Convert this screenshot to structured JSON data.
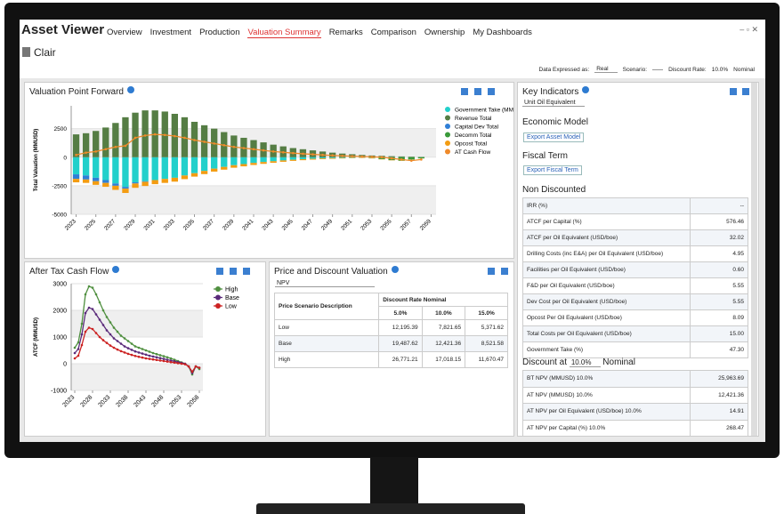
{
  "header": {
    "title": "Asset Viewer",
    "tabs": [
      "Overview",
      "Investment",
      "Production",
      "Valuation Summary",
      "Remarks",
      "Comparison",
      "Ownership",
      "My Dashboards"
    ]
  },
  "asset": "Clair",
  "controls": {
    "data_expressed_label": "Data Expressed as:",
    "data_expressed_value": "Real",
    "scenario_label": "Scenario:",
    "discount_rate_label": "Discount Rate:",
    "discount_rate_value": "10.0%",
    "discount_basis": "Nominal"
  },
  "chart_data": [
    {
      "type": "bar",
      "title": "Valuation Point Forward",
      "y_label": "Total Valuation (MMUSD)",
      "x": [
        2023,
        2024,
        2025,
        2026,
        2027,
        2028,
        2029,
        2030,
        2031,
        2032,
        2033,
        2034,
        2035,
        2036,
        2037,
        2038,
        2039,
        2040,
        2041,
        2042,
        2043,
        2044,
        2045,
        2046,
        2047,
        2048,
        2049,
        2050,
        2051,
        2052,
        2053,
        2054,
        2055,
        2056,
        2057,
        2058
      ],
      "xlim": [
        2022.5,
        2059.5
      ],
      "xticks": [
        2023,
        2025,
        2027,
        2029,
        2031,
        2033,
        2035,
        2037,
        2039,
        2041,
        2043,
        2045,
        2047,
        2049,
        2051,
        2053,
        2055,
        2057,
        2059
      ],
      "ylim": [
        -5000,
        4500
      ],
      "yticks": [
        -5000,
        -2500,
        0,
        2500
      ],
      "series": [
        {
          "name": "Government Take (MMUSD)",
          "type": "bar",
          "color": "#22d0cb",
          "values": [
            -1500,
            -1600,
            -1800,
            -2000,
            -2300,
            -2600,
            -2200,
            -2100,
            -2000,
            -1900,
            -1800,
            -1600,
            -1400,
            -1200,
            -1000,
            -850,
            -700,
            -600,
            -500,
            -420,
            -350,
            -280,
            -220,
            -170,
            -130,
            -100,
            -80,
            -60,
            -45,
            -35,
            -25,
            -18,
            -12,
            -8,
            -5,
            -3
          ]
        },
        {
          "name": "Revenue Total",
          "type": "bar",
          "color": "#557d44",
          "values": [
            2000,
            2100,
            2300,
            2600,
            3000,
            3500,
            3900,
            4100,
            4100,
            4000,
            3800,
            3500,
            3100,
            2800,
            2500,
            2200,
            1900,
            1700,
            1500,
            1300,
            1100,
            950,
            800,
            700,
            600,
            500,
            400,
            320,
            260,
            200,
            150,
            120,
            90,
            70,
            50,
            30
          ]
        },
        {
          "name": "Capital Dev Total",
          "type": "bar",
          "color": "#2f7fd6",
          "values": [
            -400,
            -350,
            -300,
            -250,
            -200,
            -150,
            -100,
            -50,
            0,
            0,
            0,
            0,
            0,
            0,
            0,
            0,
            0,
            0,
            0,
            0,
            0,
            0,
            0,
            0,
            0,
            0,
            0,
            0,
            0,
            0,
            0,
            0,
            0,
            0,
            0,
            0
          ]
        },
        {
          "name": "Decomm Total",
          "type": "bar",
          "color": "#3a9a3a",
          "values": [
            0,
            0,
            0,
            0,
            0,
            0,
            0,
            0,
            0,
            0,
            0,
            0,
            0,
            0,
            0,
            0,
            0,
            0,
            0,
            0,
            0,
            0,
            0,
            0,
            0,
            0,
            0,
            0,
            0,
            0,
            -50,
            -150,
            -250,
            -300,
            -200,
            -100
          ]
        },
        {
          "name": "Opcost Total",
          "type": "bar",
          "color": "#f39c12",
          "values": [
            -300,
            -300,
            -320,
            -340,
            -360,
            -380,
            -380,
            -370,
            -360,
            -350,
            -340,
            -320,
            -300,
            -280,
            -260,
            -240,
            -220,
            -200,
            -180,
            -160,
            -140,
            -120,
            -100,
            -90,
            -80,
            -70,
            -60,
            -50,
            -40,
            -35,
            -30,
            -25,
            -20,
            -15,
            -10,
            -5
          ]
        },
        {
          "name": "AT Cash Flow",
          "type": "line",
          "color": "#ef8a2a",
          "values": [
            200,
            400,
            500,
            700,
            900,
            1000,
            1700,
            1900,
            2000,
            1950,
            1850,
            1700,
            1500,
            1350,
            1200,
            1050,
            900,
            800,
            700,
            600,
            500,
            430,
            360,
            300,
            250,
            200,
            160,
            120,
            90,
            60,
            30,
            0,
            -100,
            -200,
            -300,
            -200
          ]
        }
      ]
    },
    {
      "type": "line",
      "title": "After Tax Cash Flow",
      "y_label": "ATCF (MMUSD)",
      "x": [
        2023,
        2024,
        2025,
        2026,
        2027,
        2028,
        2029,
        2030,
        2031,
        2032,
        2033,
        2034,
        2035,
        2036,
        2037,
        2038,
        2039,
        2040,
        2041,
        2042,
        2043,
        2044,
        2045,
        2046,
        2047,
        2048,
        2049,
        2050,
        2051,
        2052,
        2053,
        2054,
        2055,
        2056,
        2057,
        2058
      ],
      "xlim": [
        2022,
        2059
      ],
      "xticks": [
        2023,
        2028,
        2033,
        2038,
        2043,
        2048,
        2053,
        2058
      ],
      "ylim": [
        -1000,
        3000
      ],
      "yticks": [
        -1000,
        0,
        1000,
        2000,
        3000
      ],
      "series": [
        {
          "name": "High",
          "type": "line",
          "color": "#4f8f3f",
          "values": [
            600,
            800,
            1500,
            2600,
            2900,
            2850,
            2600,
            2300,
            2000,
            1750,
            1550,
            1350,
            1200,
            1050,
            950,
            850,
            750,
            650,
            600,
            550,
            500,
            450,
            400,
            360,
            320,
            280,
            240,
            200,
            150,
            100,
            50,
            0,
            -100,
            -400,
            -100,
            -200
          ]
        },
        {
          "name": "Base",
          "type": "line",
          "color": "#5a2a7a",
          "values": [
            400,
            550,
            1100,
            1900,
            2100,
            2050,
            1850,
            1650,
            1450,
            1250,
            1100,
            950,
            850,
            750,
            650,
            580,
            520,
            460,
            420,
            380,
            340,
            300,
            270,
            240,
            210,
            180,
            150,
            120,
            90,
            60,
            30,
            0,
            -100,
            -350,
            -100,
            -150
          ]
        },
        {
          "name": "Low",
          "type": "line",
          "color": "#cc2222",
          "values": [
            200,
            300,
            700,
            1200,
            1350,
            1300,
            1150,
            1000,
            880,
            780,
            680,
            600,
            530,
            470,
            420,
            370,
            330,
            290,
            260,
            230,
            200,
            180,
            160,
            140,
            120,
            100,
            80,
            60,
            40,
            20,
            0,
            -20,
            -100,
            -300,
            -100,
            -150
          ]
        }
      ]
    }
  ],
  "price_table": {
    "title": "Price and Discount Valuation",
    "measure": "NPV",
    "columns": [
      "Price Scenario Description",
      "Discount Rate Nominal"
    ],
    "rates": [
      "5.0%",
      "10.0%",
      "15.0%"
    ],
    "rows": [
      [
        "Low",
        "12,195.39",
        "7,821.65",
        "5,371.62"
      ],
      [
        "Base",
        "19,487.62",
        "12,421.36",
        "8,521.58"
      ],
      [
        "High",
        "26,771.21",
        "17,018.15",
        "11,670.47"
      ]
    ]
  },
  "key_indicators": {
    "title": "Key Indicators",
    "unit": "Unit Oil Equivalent",
    "economic_model": "Economic Model",
    "export_asset": "Export Asset Model",
    "fiscal_term": "Fiscal Term",
    "export_fiscal": "Export Fiscal Term",
    "non_discounted": "Non Discounted",
    "rows": [
      [
        "IRR (%)",
        "--"
      ],
      [
        "ATCF per Capital (%)",
        "576.46"
      ],
      [
        "ATCF per Oil Equivalent (USD/boe)",
        "32.02"
      ],
      [
        "Drilling Costs (inc E&A) per Oil Equivalent (USD/boe)",
        "4.95"
      ],
      [
        "Facilities per Oil Equivalent (USD/boe)",
        "0.60"
      ],
      [
        "F&D per Oil Equivalent (USD/boe)",
        "5.55"
      ],
      [
        "Dev Cost per Oil Equivalent (USD/boe)",
        "5.55"
      ],
      [
        "Opcost Per Oil Equivalent (USD/boe)",
        "8.09"
      ],
      [
        "Total Costs per Oil Equivalent (USD/boe)",
        "15.00"
      ],
      [
        "Government Take (%)",
        "47.30"
      ]
    ],
    "discount_label": "Discount at",
    "discount_rate": "10.0%",
    "discount_basis": "Nominal",
    "discounted_rows": [
      [
        "BT NPV (MMUSD) 10.0%",
        "25,963.69"
      ],
      [
        "AT NPV (MMUSD) 10.0%",
        "12,421.36"
      ],
      [
        "AT NPV per Oil Equivalent (USD/boe) 10.0%",
        "14.91"
      ],
      [
        "AT NPV per Capital (%) 10.0%",
        "268.47"
      ]
    ]
  }
}
